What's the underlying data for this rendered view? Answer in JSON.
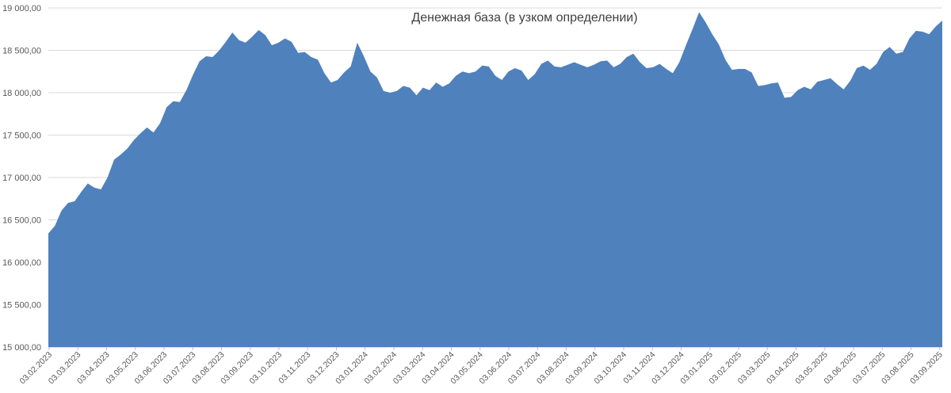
{
  "chart_data": {
    "type": "area",
    "title": "Денежная база (в узком определении)",
    "xlabel": "",
    "ylabel": "",
    "ylim": [
      15000,
      19000
    ],
    "grid": true,
    "legend": "none",
    "colors": {
      "area": "#4f81bd",
      "grid": "#d9d9d9",
      "text": "#595959"
    },
    "y_ticks": [
      "15 000,00",
      "15 500,00",
      "16 000,00",
      "16 500,00",
      "17 000,00",
      "17 500,00",
      "18 000,00",
      "18 500,00",
      "19 000,00"
    ],
    "x_ticks": [
      "03.02.2023",
      "03.03.2023",
      "03.04.2023",
      "03.05.2023",
      "03.06.2023",
      "03.07.2023",
      "03.08.2023",
      "03.09.2023",
      "03.10.2023",
      "03.11.2023",
      "03.12.2023",
      "03.01.2024",
      "03.02.2024",
      "03.03.2024",
      "03.04.2024",
      "03.05.2024",
      "03.06.2024",
      "03.07.2024",
      "03.08.2024",
      "03.09.2024",
      "03.10.2024",
      "03.11.2024",
      "03.12.2024",
      "03.01.2025",
      "03.02.2025",
      "03.03.2025",
      "03.04.2025",
      "03.05.2025",
      "03.06.2025",
      "03.07.2025",
      "03.08.2025",
      "03.09.2025"
    ],
    "series": [
      {
        "values": [
          16340,
          16430,
          16610,
          16700,
          16720,
          16830,
          16930,
          16880,
          16860,
          17000,
          17210,
          17270,
          17340,
          17440,
          17520,
          17590,
          17530,
          17640,
          17830,
          17900,
          17890,
          18030,
          18210,
          18370,
          18430,
          18420,
          18500,
          18600,
          18710,
          18620,
          18590,
          18660,
          18740,
          18680,
          18560,
          18590,
          18640,
          18600,
          18470,
          18480,
          18420,
          18390,
          18230,
          18120,
          18150,
          18240,
          18310,
          18590,
          18430,
          18250,
          18180,
          18020,
          18000,
          18020,
          18080,
          18060,
          17970,
          18060,
          18030,
          18120,
          18070,
          18110,
          18200,
          18250,
          18230,
          18250,
          18320,
          18310,
          18200,
          18150,
          18250,
          18290,
          18260,
          18150,
          18220,
          18340,
          18380,
          18310,
          18300,
          18330,
          18360,
          18330,
          18300,
          18330,
          18370,
          18380,
          18300,
          18340,
          18420,
          18460,
          18360,
          18290,
          18300,
          18340,
          18280,
          18230,
          18360,
          18560,
          18750,
          18950,
          18830,
          18690,
          18570,
          18390,
          18270,
          18280,
          18280,
          18240,
          18080,
          18090,
          18110,
          18120,
          17940,
          17950,
          18030,
          18070,
          18040,
          18130,
          18150,
          18170,
          18100,
          18040,
          18140,
          18290,
          18320,
          18270,
          18340,
          18480,
          18540,
          18460,
          18480,
          18640,
          18730,
          18720,
          18690,
          18780,
          18850
        ]
      }
    ]
  }
}
